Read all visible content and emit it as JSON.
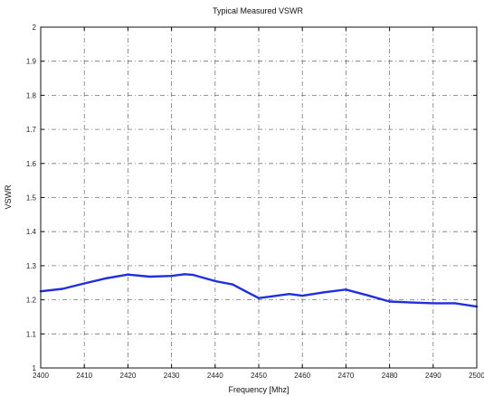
{
  "chart_data": {
    "type": "line",
    "title": "Typical Measured VSWR",
    "xlabel": "Frequency [Mhz]",
    "ylabel": "VSWR",
    "xlim": [
      2400,
      2500
    ],
    "ylim": [
      1,
      2
    ],
    "xticks": [
      "2400",
      "2410",
      "2420",
      "2430",
      "2440",
      "2450",
      "2460",
      "2470",
      "2480",
      "2490",
      "2500"
    ],
    "yticks": [
      "1",
      "1.1",
      "1.2",
      "1.3",
      "1.4",
      "1.5",
      "1.6",
      "1.7",
      "1.8",
      "1.9",
      "2"
    ],
    "grid": true,
    "series": [
      {
        "color": "#1f2fe0",
        "x": [
          2400,
          2405,
          2410,
          2415,
          2420,
          2425,
          2430,
          2433,
          2435,
          2440,
          2444,
          2447,
          2450,
          2453,
          2457,
          2460,
          2465,
          2470,
          2475,
          2480,
          2485,
          2490,
          2495,
          2500
        ],
        "y": [
          1.225,
          1.232,
          1.248,
          1.263,
          1.274,
          1.268,
          1.27,
          1.275,
          1.273,
          1.255,
          1.245,
          1.225,
          1.205,
          1.21,
          1.217,
          1.212,
          1.222,
          1.23,
          1.213,
          1.195,
          1.192,
          1.19,
          1.19,
          1.18
        ]
      }
    ]
  }
}
